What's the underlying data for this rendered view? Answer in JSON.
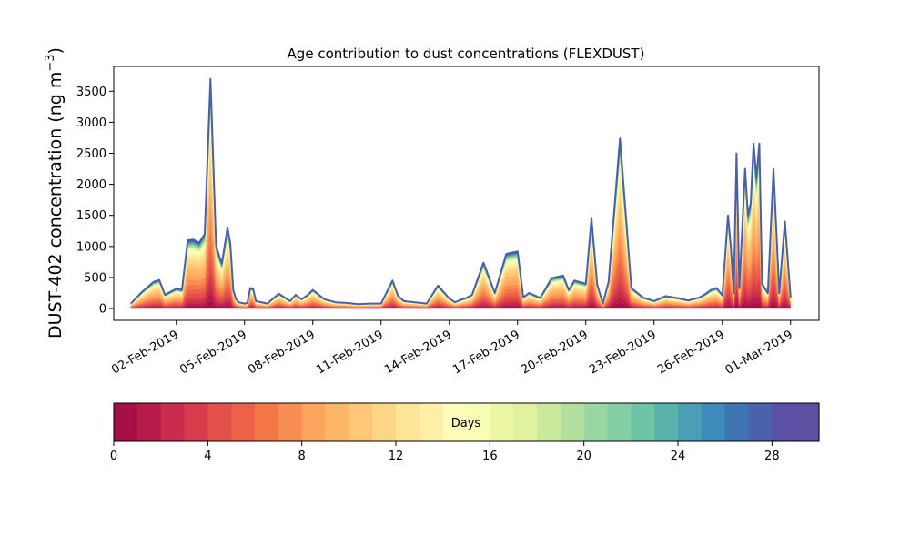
{
  "chart_data": [
    {
      "type": "area",
      "stacked": true,
      "title": "Age contribution to dust concentrations (FLEXDUST)",
      "ylabel": "DUST-402 concentration (ng m",
      "ylabel_superscript": "−3",
      "ylabel_close": ")",
      "xlabel": "",
      "ylim": [
        -190,
        3900
      ],
      "yticks": [
        0,
        500,
        1000,
        1500,
        2000,
        2500,
        3000,
        3500
      ],
      "xlim": [
        "2019-01-30T06:00",
        "2019-03-02T06:00"
      ],
      "xticks": [
        "02-Feb-2019",
        "05-Feb-2019",
        "08-Feb-2019",
        "11-Feb-2019",
        "14-Feb-2019",
        "17-Feb-2019",
        "20-Feb-2019",
        "23-Feb-2019",
        "26-Feb-2019",
        "01-Mar-2019"
      ],
      "age_bins_days": 30,
      "total_line_color": "#4a5fa5",
      "x": [
        "2019-01-31T00:00",
        "2019-01-31T12:00",
        "2019-02-01T00:00",
        "2019-02-01T06:00",
        "2019-02-01T12:00",
        "2019-02-02T00:00",
        "2019-02-02T06:00",
        "2019-02-02T12:00",
        "2019-02-02T18:00",
        "2019-02-03T00:00",
        "2019-02-03T06:00",
        "2019-02-03T12:00",
        "2019-02-03T18:00",
        "2019-02-04T00:00",
        "2019-02-04T06:00",
        "2019-02-04T09:00",
        "2019-02-04T12:00",
        "2019-02-04T15:00",
        "2019-02-04T18:00",
        "2019-02-05T00:00",
        "2019-02-05T03:00",
        "2019-02-05T06:00",
        "2019-02-05T09:00",
        "2019-02-05T12:00",
        "2019-02-06T00:00",
        "2019-02-06T12:00",
        "2019-02-07T00:00",
        "2019-02-07T06:00",
        "2019-02-07T12:00",
        "2019-02-07T18:00",
        "2019-02-08T00:00",
        "2019-02-08T12:00",
        "2019-02-09T00:00",
        "2019-02-09T12:00",
        "2019-02-10T00:00",
        "2019-02-10T12:00",
        "2019-02-11T00:00",
        "2019-02-11T12:00",
        "2019-02-11T18:00",
        "2019-02-12T00:00",
        "2019-02-12T12:00",
        "2019-02-13T00:00",
        "2019-02-13T12:00",
        "2019-02-14T00:00",
        "2019-02-14T06:00",
        "2019-02-14T12:00",
        "2019-02-14T18:00",
        "2019-02-15T00:00",
        "2019-02-15T12:00",
        "2019-02-16T00:00",
        "2019-02-16T12:00",
        "2019-02-17T00:00",
        "2019-02-17T06:00",
        "2019-02-17T12:00",
        "2019-02-18T00:00",
        "2019-02-18T12:00",
        "2019-02-19T00:00",
        "2019-02-19T06:00",
        "2019-02-19T12:00",
        "2019-02-20T00:00",
        "2019-02-20T06:00",
        "2019-02-20T12:00",
        "2019-02-20T18:00",
        "2019-02-21T00:00",
        "2019-02-21T12:00",
        "2019-02-22T00:00",
        "2019-02-22T12:00",
        "2019-02-23T00:00",
        "2019-02-23T12:00",
        "2019-02-24T00:00",
        "2019-02-24T12:00",
        "2019-02-25T00:00",
        "2019-02-25T06:00",
        "2019-02-25T12:00",
        "2019-02-25T18:00",
        "2019-02-26T00:00",
        "2019-02-26T06:00",
        "2019-02-26T09:00",
        "2019-02-26T12:00",
        "2019-02-26T15:00",
        "2019-02-26T18:00",
        "2019-02-27T00:00",
        "2019-02-27T03:00",
        "2019-02-27T06:00",
        "2019-02-27T09:00",
        "2019-02-27T12:00",
        "2019-02-27T15:00",
        "2019-02-27T18:00",
        "2019-02-28T00:00",
        "2019-02-28T06:00",
        "2019-02-28T12:00",
        "2019-02-28T18:00",
        "2019-03-01T00:00"
      ],
      "total": [
        80,
        270,
        430,
        460,
        220,
        320,
        300,
        1100,
        1110,
        1060,
        1200,
        3700,
        1000,
        720,
        1300,
        1050,
        300,
        150,
        100,
        80,
        90,
        330,
        320,
        120,
        80,
        240,
        120,
        220,
        150,
        210,
        300,
        150,
        100,
        90,
        70,
        80,
        80,
        450,
        200,
        120,
        100,
        80,
        370,
        160,
        100,
        140,
        170,
        220,
        740,
        250,
        880,
        920,
        180,
        250,
        170,
        490,
        530,
        300,
        450,
        400,
        1450,
        380,
        80,
        430,
        2740,
        330,
        180,
        120,
        200,
        170,
        130,
        180,
        230,
        300,
        330,
        210,
        1500,
        1000,
        250,
        2500,
        330,
        2250,
        1500,
        1700,
        2660,
        2100,
        2660,
        400,
        250,
        2250,
        250,
        1400,
        180
      ]
    },
    {
      "type": "colorbar",
      "label": "Days",
      "ticks": [
        0,
        4,
        8,
        12,
        16,
        20,
        24,
        28
      ],
      "range": [
        0,
        30
      ],
      "colormap": "Spectral",
      "colors": [
        "#a50f45",
        "#b71c4b",
        "#c92c4c",
        "#d83c4a",
        "#e4514a",
        "#ec6148",
        "#f47748",
        "#f98e52",
        "#fca55f",
        "#fdb667",
        "#fec776",
        "#fed786",
        "#fee597",
        "#fff0a7",
        "#fffcbb",
        "#f8fcb4",
        "#eef8a4",
        "#e0f29e",
        "#c9e99d",
        "#b4e09f",
        "#9ad6a4",
        "#84cea5",
        "#6ec4a6",
        "#5ab2ab",
        "#4b9eb4",
        "#3e8abb",
        "#3f74b2",
        "#4b62ab",
        "#5a50a4",
        "#5e4fa2"
      ]
    }
  ]
}
